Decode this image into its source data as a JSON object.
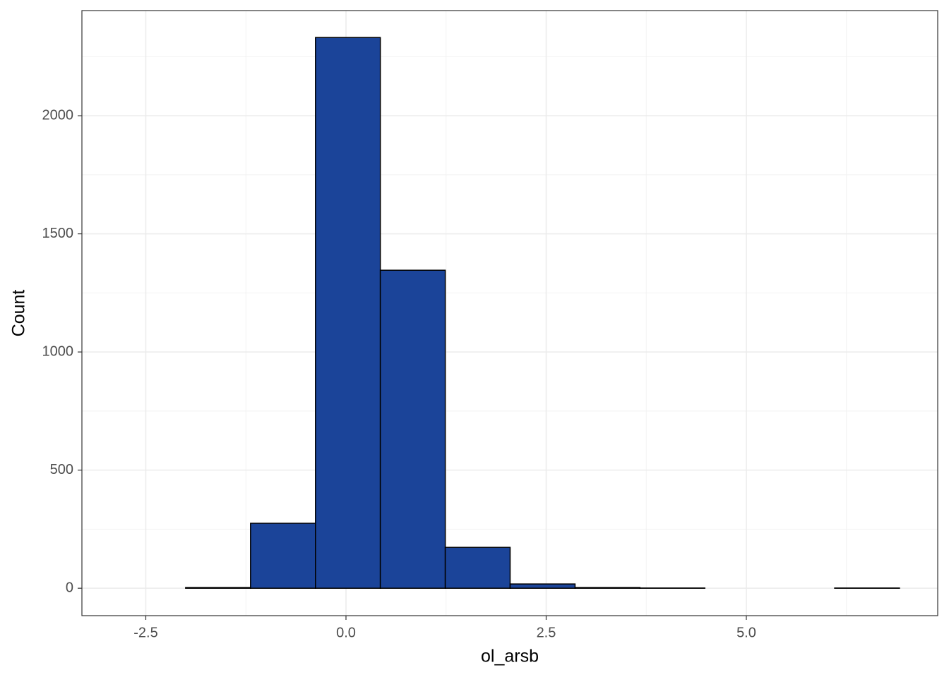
{
  "chart_data": {
    "type": "histogram",
    "x_label": "ol_arsb",
    "y_label": "Count",
    "bins": [
      -2.813,
      -2.003,
      -1.192,
      -0.381,
      0.429,
      1.24,
      2.05,
      2.861,
      3.671,
      4.482,
      5.292,
      6.103,
      6.913
    ],
    "counts": [
      0,
      3,
      275,
      2331,
      1346,
      173,
      18,
      3,
      1,
      0,
      0,
      1
    ],
    "color": "#1b4499",
    "xlim": [
      -3.298,
      7.39
    ],
    "ylim": [
      -116,
      2445
    ],
    "xticks": [
      -2.5,
      {
        "value": 0,
        "label": "0.0"
      },
      2.5,
      {
        "value": 5,
        "label": "5.0"
      }
    ],
    "yticks": [
      0,
      500,
      1000,
      1500,
      2000
    ],
    "minor_xticks": [
      -1.25,
      1.25,
      3.75,
      6.25
    ],
    "minor_yticks": [
      250,
      750,
      1250,
      1750,
      2250
    ],
    "grid": true
  }
}
